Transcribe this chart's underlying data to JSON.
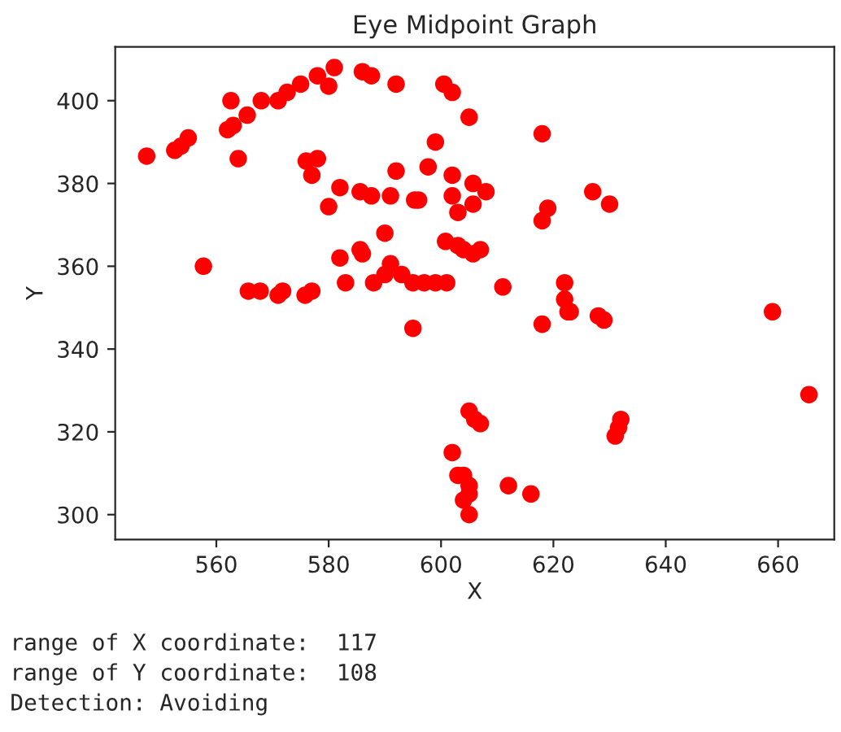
{
  "chart_data": {
    "type": "scatter",
    "title": "Eye Midpoint Graph",
    "xlabel": "X",
    "ylabel": "Y",
    "xlim": [
      542,
      670
    ],
    "ylim": [
      294,
      413
    ],
    "xticks": [
      560,
      580,
      600,
      620,
      640,
      660
    ],
    "yticks": [
      300,
      320,
      340,
      360,
      380,
      400
    ],
    "grid": false,
    "marker": "circle",
    "annotations": [
      "range of X coordinate:  117",
      "range of Y coordinate:  108",
      "Detection: Avoiding"
    ],
    "series": [
      {
        "color": "#ff0000",
        "x": [
          547.6,
          552.6,
          553.7,
          555,
          562,
          563,
          565.5,
          568,
          562.6,
          571,
          572.6,
          575,
          578,
          580,
          581,
          586,
          587.6,
          592,
          563.9,
          576,
          578,
          577,
          582,
          585.6,
          587.6,
          591,
          592,
          595.3,
          580,
          590,
          582,
          585.6,
          586,
          591,
          583,
          588,
          590,
          593,
          595,
          557.7,
          565.7,
          567.8,
          571,
          571.8,
          575.8,
          577,
          600.5,
          602,
          605,
          618,
          599,
          597.7,
          602,
          605.7,
          608,
          596,
          602,
          603,
          605.7,
          619,
          618,
          627,
          630,
          600.8,
          603,
          604,
          605.7,
          607,
          597,
          599,
          601,
          611,
          622,
          622,
          622.6,
          618,
          659,
          595,
          623,
          628,
          629,
          665.5,
          605,
          606,
          607,
          632,
          631.6,
          631,
          602,
          603,
          604,
          605,
          604,
          605,
          605,
          612,
          616
        ],
        "values": [
          386.6,
          388,
          389,
          391,
          393,
          394,
          396.5,
          400,
          400,
          400,
          402,
          404,
          406,
          403.5,
          408,
          407,
          406,
          404,
          386,
          385.4,
          386,
          382,
          379,
          378,
          377,
          377,
          383,
          376,
          374.4,
          368,
          362,
          364,
          363,
          360.6,
          356,
          356,
          358,
          358,
          356,
          360,
          354,
          354,
          353,
          354,
          353,
          354,
          404,
          402,
          396,
          392,
          390,
          384,
          382,
          380,
          378,
          376,
          377,
          373,
          375,
          374,
          371,
          378,
          375,
          366,
          365,
          364,
          363,
          364,
          356,
          356,
          356,
          355,
          356,
          352,
          349,
          346,
          349,
          345,
          349,
          348,
          347,
          329,
          325,
          323,
          322,
          323,
          321,
          319,
          315,
          309.5,
          309.5,
          307,
          303.5,
          305,
          300,
          307,
          305
        ]
      }
    ]
  }
}
